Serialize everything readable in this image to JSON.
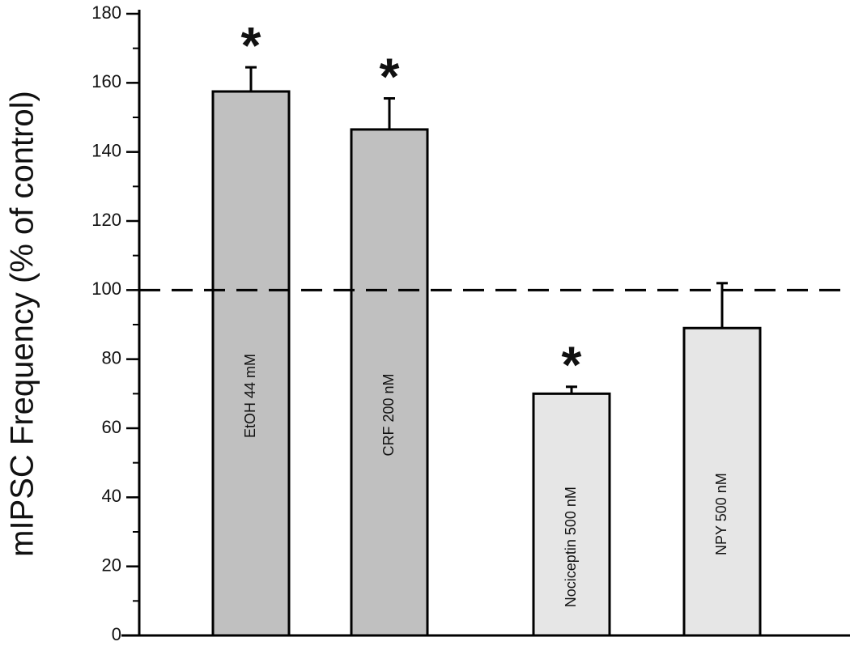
{
  "chart_data": {
    "type": "bar",
    "y_label": "mIPSC Frequency  (% of control)",
    "categories": [
      "EtOH 44 mM",
      "CRF 200 nM",
      "Nociceptin 500 nM",
      "NPY 500 nM"
    ],
    "values": [
      157.5,
      146.5,
      70,
      89
    ],
    "errors": [
      7,
      9,
      2,
      13
    ],
    "colors": [
      "#c0c0c0",
      "#c0c0c0",
      "#e6e6e6",
      "#e6e6e6"
    ],
    "significance": [
      "*",
      "*",
      "*",
      null
    ],
    "reference_line": 100,
    "ylim": [
      0,
      180
    ],
    "yticks": [
      0,
      20,
      40,
      60,
      80,
      100,
      120,
      140,
      160,
      180
    ],
    "yminor": 10
  }
}
